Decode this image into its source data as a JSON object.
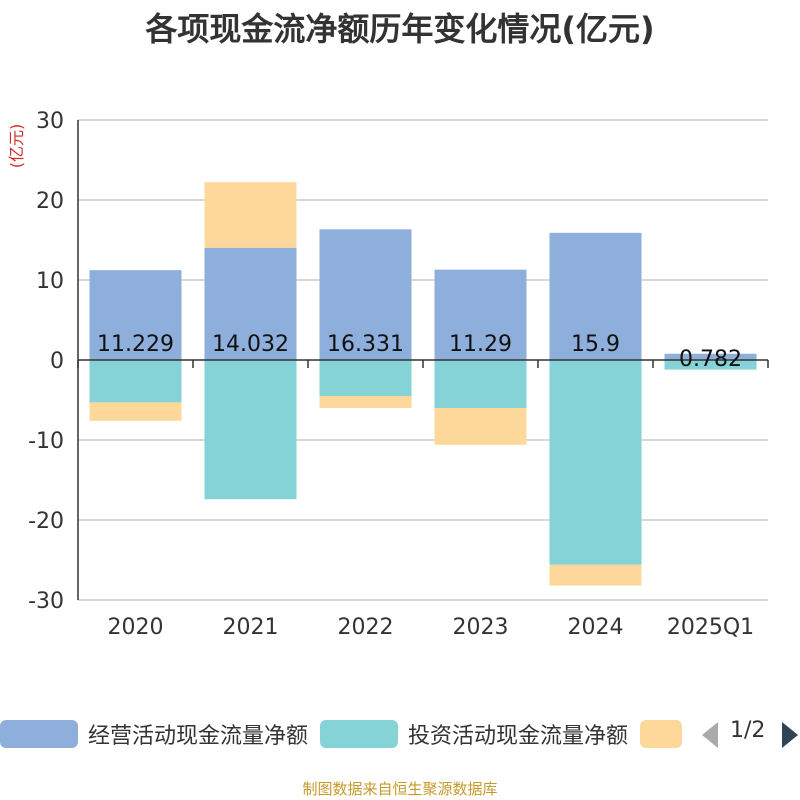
{
  "chart_data": {
    "type": "bar",
    "stacked": true,
    "title": "各项现金流净额历年变化情况(亿元)",
    "ylabel": "(亿元)",
    "ylim": [
      -30,
      30
    ],
    "yticks": [
      30,
      20,
      10,
      0,
      -10,
      -20,
      -30
    ],
    "grid": true,
    "legend_position": "bottom",
    "categories": [
      "2020",
      "2021",
      "2022",
      "2023",
      "2024",
      "2025Q1"
    ],
    "series": [
      {
        "name": "经营活动现金流量净额",
        "color": "#8eaedb",
        "values": [
          11.229,
          14.032,
          16.331,
          11.29,
          15.9,
          0.782
        ],
        "labels": [
          "11.229",
          "14.032",
          "16.331",
          "11.29",
          "15.9",
          "0.782"
        ]
      },
      {
        "name": "投资活动现金流量净额",
        "color": "#85d3d6",
        "values": [
          -5.3,
          -17.4,
          -4.5,
          -6.0,
          -25.6,
          -1.2
        ]
      },
      {
        "name": "",
        "color": "#fdd89a",
        "values": [
          -2.3,
          8.2,
          -1.5,
          -4.6,
          -2.6,
          0
        ]
      }
    ]
  },
  "legend": {
    "pager": "1/2"
  },
  "footer": {
    "source": "制图数据来自恒生聚源数据库"
  }
}
